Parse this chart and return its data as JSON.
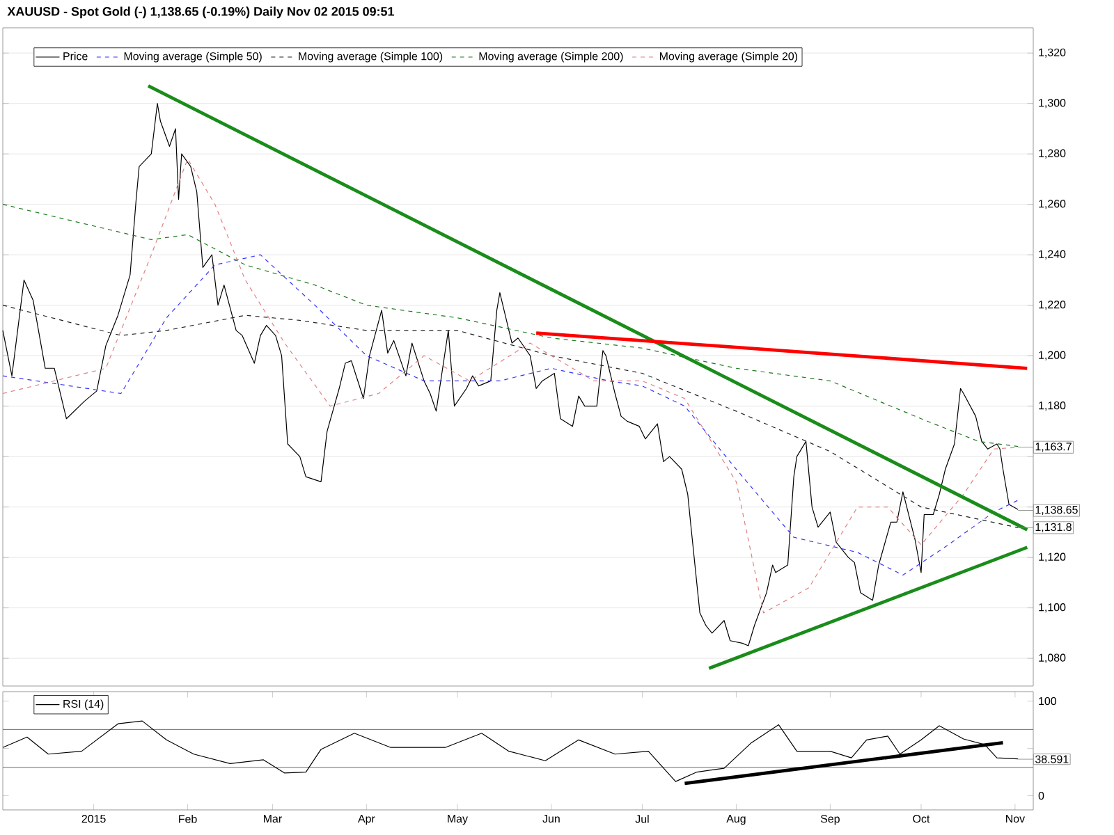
{
  "chart_data": [
    {
      "type": "line",
      "title": "XAUUSD - Spot Gold (-)    1,138.65 (-0.19%)    Daily  Nov 02 2015 09:51",
      "grid": "y",
      "legend": "top left",
      "tick_labels": "y",
      "xlim": [
        "2014-12-02",
        "2015-11-07"
      ],
      "ylim": [
        1069,
        1330
      ],
      "yticks": [
        {
          "value": 1080,
          "label": "1,080"
        },
        {
          "value": 1100,
          "label": "1,100"
        },
        {
          "value": 1120,
          "label": "1,120"
        },
        {
          "value": 1140,
          "label": null
        },
        {
          "value": 1160,
          "label": null
        },
        {
          "value": 1180,
          "label": "1,180"
        },
        {
          "value": 1200,
          "label": "1,200"
        },
        {
          "value": 1220,
          "label": "1,220"
        },
        {
          "value": 1240,
          "label": "1,240"
        },
        {
          "value": 1260,
          "label": "1,260"
        },
        {
          "value": 1280,
          "label": "1,280"
        },
        {
          "value": 1300,
          "label": "1,300"
        },
        {
          "value": 1320,
          "label": "1,320"
        }
      ],
      "annotations": [
        {
          "text": "1,163.7",
          "x": "2015-11-02",
          "y": 1163.7
        },
        {
          "text": "1,138.65",
          "x": "2015-11-02",
          "y": 1138.65
        },
        {
          "text": "1,131.8",
          "x": "2015-11-02",
          "y": 1131.8
        }
      ],
      "series": [
        {
          "name": "Price",
          "color": "#000000",
          "line_style": "solid",
          "x": [
            "2014-12-02",
            "2014-12-05",
            "2014-12-09",
            "2014-12-12",
            "2014-12-16",
            "2014-12-19",
            "2014-12-23",
            "2014-12-29",
            "2014-12-31",
            "2015-01-02",
            "2015-01-05",
            "2015-01-07",
            "2015-01-09",
            "2015-01-13",
            "2015-01-15",
            "2015-01-16",
            "2015-01-20",
            "2015-01-22",
            "2015-01-23",
            "2015-01-26",
            "2015-01-28",
            "2015-01-29",
            "2015-01-30",
            "2015-02-02",
            "2015-02-04",
            "2015-02-06",
            "2015-02-09",
            "2015-02-11",
            "2015-02-13",
            "2015-02-17",
            "2015-02-19",
            "2015-02-23",
            "2015-02-25",
            "2015-02-27",
            "2015-03-02",
            "2015-03-04",
            "2015-03-06",
            "2015-03-10",
            "2015-03-12",
            "2015-03-17",
            "2015-03-19",
            "2015-03-23",
            "2015-03-25",
            "2015-03-27",
            "2015-03-31",
            "2015-04-02",
            "2015-04-06",
            "2015-04-08",
            "2015-04-10",
            "2015-04-14",
            "2015-04-16",
            "2015-04-20",
            "2015-04-22",
            "2015-04-24",
            "2015-04-28",
            "2015-04-30",
            "2015-05-04",
            "2015-05-06",
            "2015-05-08",
            "2015-05-12",
            "2015-05-14",
            "2015-05-15",
            "2015-05-19",
            "2015-05-21",
            "2015-05-25",
            "2015-05-27",
            "2015-05-29",
            "2015-06-02",
            "2015-06-04",
            "2015-06-08",
            "2015-06-10",
            "2015-06-12",
            "2015-06-16",
            "2015-06-18",
            "2015-06-19",
            "2015-06-22",
            "2015-06-24",
            "2015-06-26",
            "2015-06-30",
            "2015-07-02",
            "2015-07-06",
            "2015-07-08",
            "2015-07-10",
            "2015-07-14",
            "2015-07-16",
            "2015-07-17",
            "2015-07-20",
            "2015-07-22",
            "2015-07-24",
            "2015-07-28",
            "2015-07-30",
            "2015-08-03",
            "2015-08-05",
            "2015-08-07",
            "2015-08-11",
            "2015-08-13",
            "2015-08-14",
            "2015-08-18",
            "2015-08-20",
            "2015-08-21",
            "2015-08-24",
            "2015-08-26",
            "2015-08-28",
            "2015-09-01",
            "2015-09-03",
            "2015-09-07",
            "2015-09-09",
            "2015-09-11",
            "2015-09-15",
            "2015-09-17",
            "2015-09-21",
            "2015-09-23",
            "2015-09-25",
            "2015-09-29",
            "2015-10-01",
            "2015-10-02",
            "2015-10-05",
            "2015-10-07",
            "2015-10-09",
            "2015-10-12",
            "2015-10-14",
            "2015-10-15",
            "2015-10-19",
            "2015-10-21",
            "2015-10-23",
            "2015-10-26",
            "2015-10-27",
            "2015-10-28",
            "2015-10-30",
            "2015-11-02"
          ],
          "values": [
            1210,
            1192,
            1230,
            1222,
            1195,
            1195,
            1175,
            1182,
            1184,
            1186,
            1204,
            1210,
            1216,
            1232,
            1262,
            1275,
            1280,
            1300,
            1293,
            1283,
            1290,
            1262,
            1280,
            1275,
            1265,
            1235,
            1240,
            1220,
            1228,
            1210,
            1208,
            1197,
            1208,
            1212,
            1208,
            1200,
            1165,
            1160,
            1152,
            1150,
            1170,
            1187,
            1197,
            1198,
            1183,
            1200,
            1218,
            1201,
            1206,
            1192,
            1205,
            1190,
            1185,
            1178,
            1210,
            1180,
            1187,
            1192,
            1188,
            1190,
            1218,
            1225,
            1205,
            1207,
            1200,
            1187,
            1190,
            1193,
            1175,
            1172,
            1184,
            1180,
            1180,
            1202,
            1200,
            1185,
            1176,
            1174,
            1172,
            1167,
            1173,
            1158,
            1160,
            1155,
            1145,
            1133,
            1098,
            1093,
            1090,
            1095,
            1087,
            1086,
            1085,
            1093,
            1106,
            1117,
            1114,
            1117,
            1152,
            1160,
            1166,
            1140,
            1132,
            1138,
            1126,
            1120,
            1118,
            1106,
            1103,
            1117,
            1134,
            1134,
            1146,
            1127,
            1114,
            1137,
            1137,
            1145,
            1155,
            1165,
            1187,
            1185,
            1176,
            1166,
            1163,
            1165,
            1163,
            1155,
            1141,
            1139
          ]
        },
        {
          "name": "Moving average (Simple 50)",
          "color": "#3333ff",
          "line_style": "dashed",
          "x": [
            "2014-12-02",
            "2015-01-10",
            "2015-01-25",
            "2015-02-10",
            "2015-02-25",
            "2015-03-15",
            "2015-04-01",
            "2015-04-20",
            "2015-05-15",
            "2015-06-01",
            "2015-06-20",
            "2015-07-01",
            "2015-07-15",
            "2015-08-01",
            "2015-08-20",
            "2015-09-10",
            "2015-09-25",
            "2015-10-10",
            "2015-10-25",
            "2015-11-02"
          ],
          "values": [
            1192,
            1185,
            1215,
            1236,
            1240,
            1220,
            1200,
            1190,
            1190,
            1195,
            1190,
            1188,
            1180,
            1155,
            1128,
            1122,
            1113,
            1125,
            1138,
            1142.7
          ]
        },
        {
          "name": "Moving average (Simple 100)",
          "color": "#222222",
          "line_style": "dashed",
          "x": [
            "2014-12-02",
            "2015-01-10",
            "2015-01-25",
            "2015-02-20",
            "2015-03-10",
            "2015-04-01",
            "2015-05-01",
            "2015-06-01",
            "2015-07-01",
            "2015-08-01",
            "2015-09-01",
            "2015-10-01",
            "2015-11-02"
          ],
          "values": [
            1220,
            1208,
            1210,
            1216,
            1214,
            1210,
            1210,
            1200,
            1193,
            1178,
            1162,
            1140,
            1131.8
          ]
        },
        {
          "name": "Moving average (Simple 200)",
          "color": "#1a7a1a",
          "line_style": "dashed",
          "x": [
            "2014-12-02",
            "2015-01-20",
            "2015-02-01",
            "2015-02-20",
            "2015-03-15",
            "2015-04-01",
            "2015-05-01",
            "2015-06-01",
            "2015-07-01",
            "2015-08-01",
            "2015-09-01",
            "2015-10-01",
            "2015-10-20",
            "2015-11-02"
          ],
          "values": [
            1260,
            1246,
            1248,
            1236,
            1228,
            1220,
            1215,
            1207,
            1203,
            1195,
            1190,
            1175,
            1166,
            1164
          ]
        },
        {
          "name": "Moving average (Simple 20)",
          "color": "#e08080",
          "line_style": "dashed",
          "x": [
            "2014-12-02",
            "2015-01-05",
            "2015-01-20",
            "2015-02-01",
            "2015-02-10",
            "2015-02-20",
            "2015-03-05",
            "2015-03-20",
            "2015-04-05",
            "2015-04-20",
            "2015-05-05",
            "2015-05-25",
            "2015-06-15",
            "2015-07-01",
            "2015-07-15",
            "2015-08-01",
            "2015-08-10",
            "2015-08-25",
            "2015-09-10",
            "2015-09-20",
            "2015-10-01",
            "2015-10-15",
            "2015-10-25",
            "2015-11-02"
          ],
          "values": [
            1185,
            1195,
            1240,
            1278,
            1260,
            1230,
            1205,
            1180,
            1185,
            1200,
            1190,
            1205,
            1190,
            1190,
            1183,
            1150,
            1098,
            1108,
            1140,
            1140,
            1125,
            1145,
            1163,
            1163.7
          ]
        },
        {
          "color": "#1a8c1a",
          "line_style": "solid",
          "x": [
            "2015-01-19",
            "2015-11-05"
          ],
          "values": [
            1307,
            1131
          ]
        },
        {
          "color": "#ff0000",
          "line_style": "solid",
          "x": [
            "2015-05-27",
            "2015-11-05"
          ],
          "values": [
            1209,
            1195
          ]
        },
        {
          "color": "#1a8c1a",
          "line_style": "solid",
          "x": [
            "2015-07-23",
            "2015-11-05"
          ],
          "values": [
            1076,
            1124
          ]
        }
      ]
    },
    {
      "type": "line",
      "legend": "top left",
      "xlim": [
        "2014-12-02",
        "2015-11-07"
      ],
      "ylim": [
        -15,
        110
      ],
      "xticks": [
        {
          "value": "2015-01-01",
          "label": "2015"
        },
        {
          "value": "2015-02-01",
          "label": "Feb"
        },
        {
          "value": "2015-03-01",
          "label": "Mar"
        },
        {
          "value": "2015-04-01",
          "label": "Apr"
        },
        {
          "value": "2015-05-01",
          "label": "May"
        },
        {
          "value": "2015-06-01",
          "label": "Jun"
        },
        {
          "value": "2015-07-01",
          "label": "Jul"
        },
        {
          "value": "2015-08-01",
          "label": "Aug"
        },
        {
          "value": "2015-09-01",
          "label": "Sep"
        },
        {
          "value": "2015-10-01",
          "label": "Oct"
        },
        {
          "value": "2015-11-01",
          "label": "Nov"
        }
      ],
      "yticks": [
        0,
        {
          "value": 50,
          "label": null
        },
        100
      ],
      "ref_lines": [
        {
          "axis": "y",
          "value": 70,
          "color": "#3333cc"
        },
        {
          "axis": "y",
          "value": 30,
          "color": "#3333cc"
        }
      ],
      "annotations": [
        {
          "text": "38.591",
          "x": "2015-11-02",
          "y": 38.591
        }
      ],
      "series": [
        {
          "name": "RSI (14)",
          "color": "#000000",
          "line_style": "solid",
          "x": [
            "2014-12-02",
            "2014-12-10",
            "2014-12-17",
            "2014-12-28",
            "2015-01-09",
            "2015-01-17",
            "2015-01-25",
            "2015-02-03",
            "2015-02-15",
            "2015-02-26",
            "2015-03-05",
            "2015-03-12",
            "2015-03-17",
            "2015-03-28",
            "2015-04-09",
            "2015-04-18",
            "2015-04-27",
            "2015-05-09",
            "2015-05-18",
            "2015-05-30",
            "2015-06-10",
            "2015-06-22",
            "2015-07-03",
            "2015-07-12",
            "2015-07-19",
            "2015-07-28",
            "2015-08-06",
            "2015-08-15",
            "2015-08-21",
            "2015-09-01",
            "2015-09-08",
            "2015-09-13",
            "2015-09-20",
            "2015-09-24",
            "2015-10-01",
            "2015-10-07",
            "2015-10-15",
            "2015-10-22",
            "2015-10-26",
            "2015-11-02"
          ],
          "values": [
            51,
            62,
            44,
            47,
            76,
            79,
            59,
            44,
            34,
            38,
            24,
            25,
            49,
            66,
            51,
            51,
            51,
            66,
            47,
            37,
            59,
            44,
            47,
            15,
            25,
            29,
            56,
            75,
            47,
            47,
            40,
            59,
            63,
            44,
            59,
            74,
            60,
            54,
            40,
            39
          ]
        },
        {
          "color": "#000000",
          "line_style": "solid",
          "x": [
            "2015-07-15",
            "2015-10-28"
          ],
          "values": [
            13,
            56
          ]
        }
      ]
    }
  ]
}
